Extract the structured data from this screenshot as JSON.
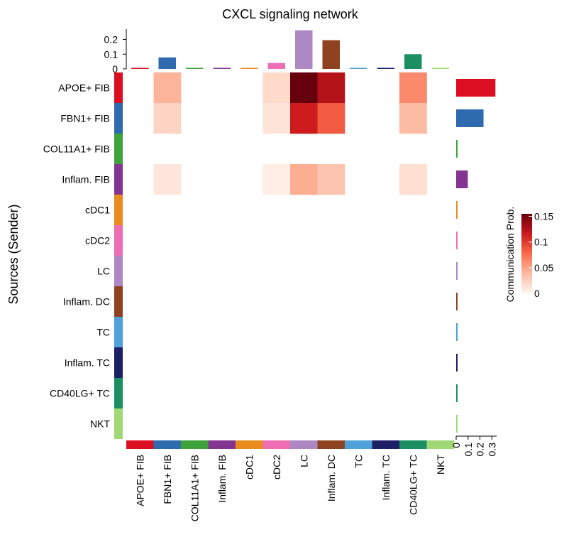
{
  "chart_data": {
    "type": "heatmap",
    "title": "CXCL signaling network",
    "ylabel": "Sources (Sender)",
    "legend_title": "Communication Prob.",
    "legend_ticks": [
      "0.15",
      "0.1",
      "0.05",
      "0"
    ],
    "legend_range": [
      0,
      0.155
    ],
    "legend_placement": "right",
    "cell_types": [
      "APOE+ FIB",
      "FBN1+ FIB",
      "COL11A1+ FIB",
      "Inflam. FIB",
      "cDC1",
      "cDC2",
      "LC",
      "Inflam. DC",
      "TC",
      "Inflam. TC",
      "CD40LG+ TC",
      "NKT"
    ],
    "colors": [
      "#DC0E21",
      "#2E6AAE",
      "#3FA33C",
      "#833591",
      "#EA8B1E",
      "#EE6EB3",
      "#AD88C2",
      "#8E421F",
      "#4FA0DB",
      "#1D2066",
      "#1B8F62",
      "#A1D876"
    ],
    "matrix": [
      [
        0,
        0.042,
        0,
        0,
        0,
        0.018,
        0.155,
        0.125,
        0,
        0,
        0.062,
        0
      ],
      [
        0,
        0.022,
        0,
        0,
        0,
        0.012,
        0.115,
        0.085,
        0,
        0,
        0.038,
        0
      ],
      [
        0,
        0,
        0,
        0,
        0,
        0,
        0,
        0,
        0,
        0,
        0,
        0
      ],
      [
        0,
        0.01,
        0,
        0,
        0,
        0.005,
        0.045,
        0.032,
        0,
        0,
        0.015,
        0
      ],
      [
        0,
        0,
        0,
        0,
        0,
        0,
        0,
        0,
        0,
        0,
        0,
        0
      ],
      [
        0,
        0,
        0,
        0,
        0,
        0,
        0,
        0,
        0,
        0,
        0,
        0
      ],
      [
        0,
        0,
        0,
        0,
        0,
        0,
        0,
        0,
        0,
        0,
        0,
        0
      ],
      [
        0,
        0,
        0,
        0,
        0,
        0,
        0,
        0,
        0,
        0,
        0,
        0
      ],
      [
        0,
        0,
        0,
        0,
        0,
        0,
        0,
        0,
        0,
        0,
        0,
        0
      ],
      [
        0,
        0,
        0,
        0,
        0,
        0,
        0,
        0,
        0,
        0,
        0,
        0
      ],
      [
        0,
        0,
        0,
        0,
        0,
        0,
        0,
        0,
        0,
        0,
        0,
        0
      ],
      [
        0,
        0,
        0,
        0,
        0,
        0,
        0,
        0,
        0,
        0,
        0,
        0
      ]
    ],
    "top_bar": {
      "values": [
        0.004,
        0.078,
        0.003,
        0.003,
        0.002,
        0.04,
        0.262,
        0.195,
        0.002,
        0.002,
        0.1,
        0.002
      ],
      "ticks": [
        "0.2",
        "0.1",
        "0"
      ],
      "ylim": [
        0,
        0.27
      ]
    },
    "right_bar": {
      "values": [
        0.33,
        0.23,
        0.006,
        0.098,
        0.002,
        0.002,
        0.002,
        0.002,
        0.002,
        0.002,
        0.002,
        0.002
      ],
      "ticks": [
        "0",
        "0.1",
        "0.2",
        "0.3"
      ],
      "xlim": [
        0,
        0.34
      ]
    }
  }
}
